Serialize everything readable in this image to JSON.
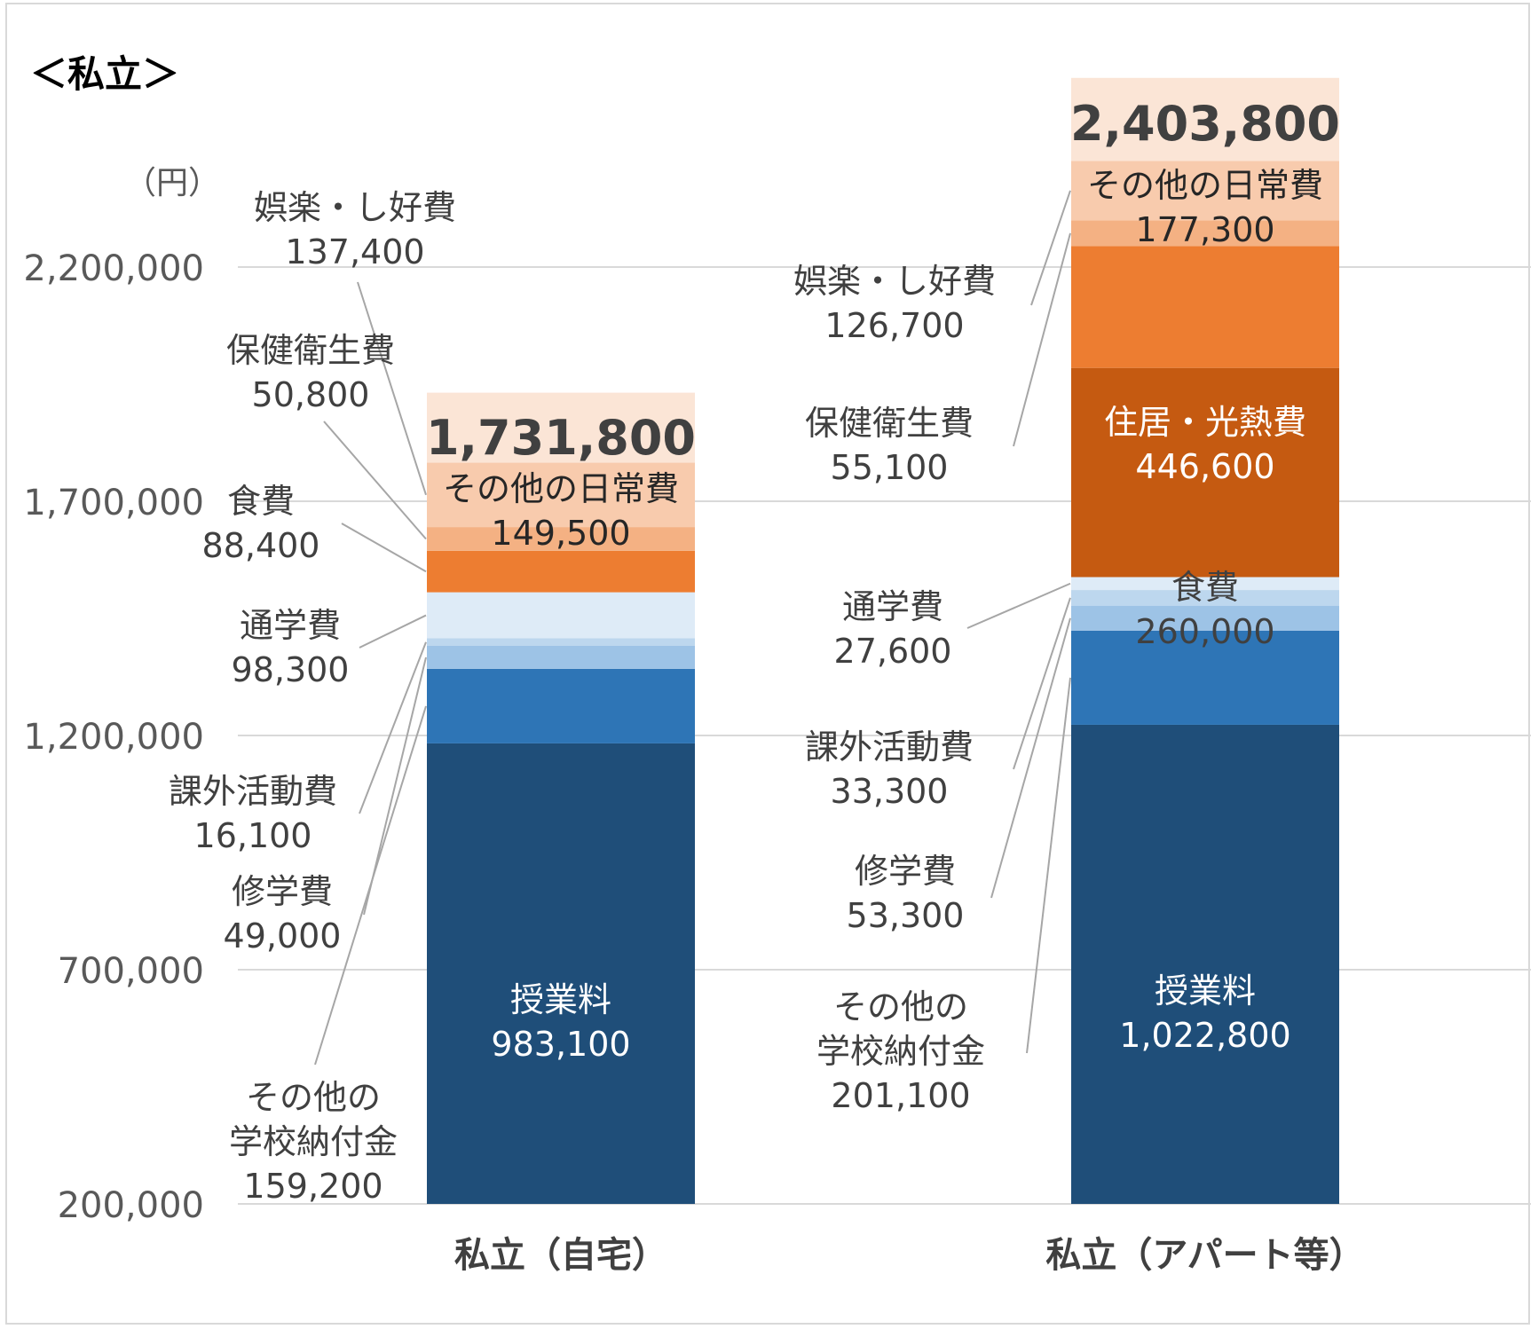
{
  "chart_data": {
    "type": "bar",
    "stacked": true,
    "title": "＜私立＞",
    "unit_label": "（円）",
    "ylim": [
      200000,
      2400000
    ],
    "yticks": [
      200000,
      700000,
      1200000,
      1700000,
      2200000
    ],
    "ytick_labels": [
      "200,000",
      "700,000",
      "1,200,000",
      "1,700,000",
      "2,200,000"
    ],
    "grid": true,
    "categories": [
      "私立（自宅）",
      "私立（アパート等）"
    ],
    "totals": [
      1731800,
      2403800
    ],
    "total_labels": [
      "1,731,800",
      "2,403,800"
    ],
    "series": [
      {
        "name": "授業料",
        "values": [
          983100,
          1022800
        ],
        "labels": [
          "983,100",
          "1,022,800"
        ],
        "color": "#1f4e79"
      },
      {
        "name": "その他の学校納付金",
        "values": [
          159200,
          201100
        ],
        "labels": [
          "159,200",
          "201,100"
        ],
        "color": "#2e75b6"
      },
      {
        "name": "修学費",
        "values": [
          49000,
          53300
        ],
        "labels": [
          "49,000",
          "53,300"
        ],
        "color": "#9dc3e6"
      },
      {
        "name": "課外活動費",
        "values": [
          16100,
          33300
        ],
        "labels": [
          "16,100",
          "33,300"
        ],
        "color": "#bdd7ee"
      },
      {
        "name": "通学費",
        "values": [
          98300,
          27600
        ],
        "labels": [
          "98,300",
          "27,600"
        ],
        "color": "#deebf7"
      },
      {
        "name": "住居・光熱費",
        "values": [
          0,
          446600
        ],
        "labels": [
          "",
          "446,600"
        ],
        "color": "#c55a11"
      },
      {
        "name": "食費",
        "values": [
          88400,
          260000
        ],
        "labels": [
          "88,400",
          "260,000"
        ],
        "color": "#ed7d31"
      },
      {
        "name": "保健衛生費",
        "values": [
          50800,
          55100
        ],
        "labels": [
          "50,800",
          "55,100"
        ],
        "color": "#f4b183"
      },
      {
        "name": "娯楽・し好費",
        "values": [
          137400,
          126700
        ],
        "labels": [
          "137,400",
          "126,700"
        ],
        "color": "#f8cbad"
      },
      {
        "name": "その他の日常費",
        "values": [
          149500,
          177300
        ],
        "labels": [
          "149,500",
          "177,300"
        ],
        "color": "#fbe5d6"
      }
    ],
    "callouts": [
      {
        "bar": 0,
        "series": "娯楽・し好費",
        "lines": [
          "娯楽・し好費",
          "137,400"
        ]
      },
      {
        "bar": 0,
        "series": "保健衛生費",
        "lines": [
          "保健衛生費",
          "50,800"
        ]
      },
      {
        "bar": 0,
        "series": "食費",
        "lines": [
          "食費",
          "88,400"
        ]
      },
      {
        "bar": 0,
        "series": "通学費",
        "lines": [
          "通学費",
          "98,300"
        ]
      },
      {
        "bar": 0,
        "series": "課外活動費",
        "lines": [
          "課外活動費",
          "16,100"
        ]
      },
      {
        "bar": 0,
        "series": "修学費",
        "lines": [
          "修学費",
          "49,000"
        ]
      },
      {
        "bar": 0,
        "series": "その他の学校納付金",
        "lines": [
          "その他の",
          "学校納付金",
          "159,200"
        ]
      },
      {
        "bar": 1,
        "series": "娯楽・し好費",
        "lines": [
          "娯楽・し好費",
          "126,700"
        ]
      },
      {
        "bar": 1,
        "series": "保健衛生費",
        "lines": [
          "保健衛生費",
          "55,100"
        ]
      },
      {
        "bar": 1,
        "series": "通学費",
        "lines": [
          "通学費",
          "27,600"
        ]
      },
      {
        "bar": 1,
        "series": "課外活動費",
        "lines": [
          "課外活動費",
          "33,300"
        ]
      },
      {
        "bar": 1,
        "series": "修学費",
        "lines": [
          "修学費",
          "53,300"
        ]
      },
      {
        "bar": 1,
        "series": "その他の学校納付金",
        "lines": [
          "その他の",
          "学校納付金",
          "201,100"
        ]
      }
    ],
    "inside_labels": [
      {
        "bar": 0,
        "series": "授業料",
        "lines": [
          "授業料",
          "983,100"
        ],
        "color": "#ffffff"
      },
      {
        "bar": 0,
        "series": "その他の日常費",
        "lines": [
          "その他の日常費",
          "149,500"
        ],
        "color": "#262626"
      },
      {
        "bar": 1,
        "series": "授業料",
        "lines": [
          "授業料",
          "1,022,800"
        ],
        "color": "#ffffff"
      },
      {
        "bar": 1,
        "series": "食費",
        "lines": [
          "食費",
          "260,000"
        ],
        "color": "#404040"
      },
      {
        "bar": 1,
        "series": "住居・光熱費",
        "lines": [
          "住居・光熱費",
          "446,600"
        ],
        "color": "#ffffff"
      },
      {
        "bar": 1,
        "series": "その他の日常費",
        "lines": [
          "その他の日常費",
          "177,300"
        ],
        "color": "#262626"
      }
    ]
  }
}
